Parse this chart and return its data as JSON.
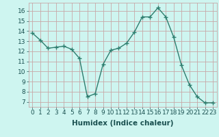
{
  "x": [
    0,
    1,
    2,
    3,
    4,
    5,
    6,
    7,
    8,
    9,
    10,
    11,
    12,
    13,
    14,
    15,
    16,
    17,
    18,
    19,
    20,
    21,
    22,
    23
  ],
  "y": [
    13.8,
    13.1,
    12.3,
    12.4,
    12.5,
    12.2,
    11.3,
    7.5,
    7.8,
    10.7,
    12.1,
    12.3,
    12.8,
    13.9,
    15.4,
    15.4,
    16.3,
    15.4,
    13.4,
    10.6,
    8.7,
    7.5,
    6.9,
    6.9
  ],
  "line_color": "#2d7d6e",
  "marker": "+",
  "marker_size": 4,
  "marker_linewidth": 1.0,
  "bg_color": "#cef5f0",
  "grid_color": "#c8a8a8",
  "xlabel": "Humidex (Indice chaleur)",
  "xlim": [
    -0.5,
    23.5
  ],
  "ylim": [
    6.5,
    16.8
  ],
  "yticks": [
    7,
    8,
    9,
    10,
    11,
    12,
    13,
    14,
    15,
    16
  ],
  "xticks": [
    0,
    1,
    2,
    3,
    4,
    5,
    6,
    7,
    8,
    9,
    10,
    11,
    12,
    13,
    14,
    15,
    16,
    17,
    18,
    19,
    20,
    21,
    22,
    23
  ],
  "font_color": "#1a5050",
  "xlabel_fontsize": 7.5,
  "tick_fontsize": 6.5,
  "linewidth": 1.0
}
